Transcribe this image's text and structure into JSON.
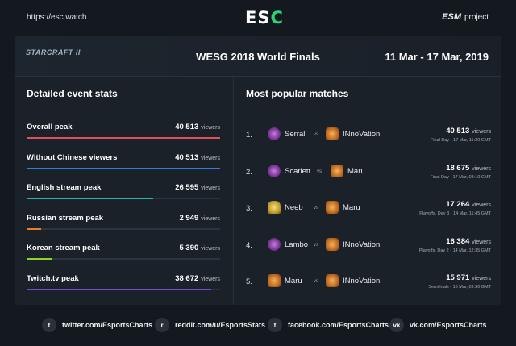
{
  "header": {
    "url": "https://esc.watch",
    "logo_e": "E",
    "logo_s": "S",
    "logo_c": "C",
    "brand_esm": "ESM",
    "brand_project": "project"
  },
  "event": {
    "game_logo": "STARCRAFT II",
    "title": "WESG 2018 World Finals",
    "dates": "11 Mar - 17 Mar, 2019"
  },
  "stats": {
    "section_title": "Detailed event stats",
    "unit": "viewers",
    "rows": [
      {
        "label": "Overall peak",
        "value": "40 513",
        "fill_pct": 100,
        "color": "#e0505a"
      },
      {
        "label": "Without Chinese viewers",
        "value": "40 513",
        "fill_pct": 100,
        "color": "#3a7bd5"
      },
      {
        "label": "English stream peak",
        "value": "26 595",
        "fill_pct": 65.6,
        "color": "#22b8a6"
      },
      {
        "label": "Russian stream peak",
        "value": "2 949",
        "fill_pct": 7.3,
        "color": "#f07a2a"
      },
      {
        "label": "Korean stream peak",
        "value": "5 390",
        "fill_pct": 13.3,
        "color": "#8fd42a"
      },
      {
        "label": "Twitch.tv peak",
        "value": "38 672",
        "fill_pct": 95.5,
        "color": "#7a44d8"
      }
    ]
  },
  "matches": {
    "section_title": "Most popular matches",
    "unit": "viewers",
    "vs_label": "vs",
    "rows": [
      {
        "rank": "1.",
        "p1": "Serral",
        "p1_race": "zerg",
        "p2": "INnoVation",
        "p2_race": "terran",
        "viewers": "40 513",
        "sub": "Final Day - 17 Mar, 11:20 GMT"
      },
      {
        "rank": "2.",
        "p1": "Scarlett",
        "p1_race": "zerg",
        "p2": "Maru",
        "p2_race": "terran",
        "viewers": "18 675",
        "sub": "Final Day - 17 Mar, 08:10 GMT"
      },
      {
        "rank": "3.",
        "p1": "Neeb",
        "p1_race": "protoss",
        "p2": "Maru",
        "p2_race": "terran",
        "viewers": "17 264",
        "sub": "Playoffs, Day 3 - 14 Mar, 11:45 GMT"
      },
      {
        "rank": "4.",
        "p1": "Lambo",
        "p1_race": "zerg",
        "p2": "INnoVation",
        "p2_race": "terran",
        "viewers": "16 384",
        "sub": "Playoffs, Day 2 - 14 Mar, 12:35 GMT"
      },
      {
        "rank": "5.",
        "p1": "Maru",
        "p1_race": "terran",
        "p2": "INnoVation",
        "p2_race": "terran",
        "viewers": "15 971",
        "sub": "Semifinals - 16 Mar, 09:30 GMT"
      }
    ]
  },
  "footer": {
    "links": [
      {
        "icon": "twitter-icon",
        "glyph": "t",
        "text": "twitter.com/EsportsCharts"
      },
      {
        "icon": "reddit-icon",
        "glyph": "r",
        "text": "reddit.com/u/EsportsStats"
      },
      {
        "icon": "facebook-icon",
        "glyph": "f",
        "text": "facebook.com/EsportsCharts"
      },
      {
        "icon": "vk-icon",
        "glyph": "vk",
        "text": "vk.com/EsportsCharts"
      }
    ]
  }
}
